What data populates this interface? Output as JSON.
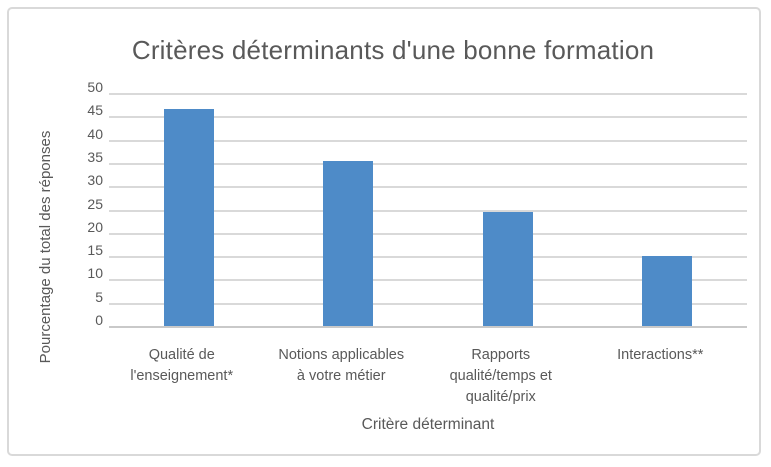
{
  "chart_data": {
    "type": "bar",
    "title": "Critères déterminants d'une bonne formation",
    "xlabel": "Critère déterminant",
    "ylabel": "Pourcentage du total des réponses",
    "categories": [
      "Qualité de l'enseignement*",
      "Notions applicables à votre métier",
      "Rapports qualité/temps et qualité/prix",
      "Interactions**"
    ],
    "values": [
      46.5,
      35.5,
      24.5,
      15
    ],
    "ylim": [
      0,
      50
    ],
    "yticks": [
      0,
      5,
      10,
      15,
      20,
      25,
      30,
      35,
      40,
      45,
      50
    ],
    "grid": "horizontal",
    "legend": "none",
    "bar_color": "#4E8BC8",
    "category_label_lines": [
      [
        "Qualité de",
        "l'enseignement*"
      ],
      [
        "Notions applicables",
        "à votre métier"
      ],
      [
        "Rapports",
        "qualité/temps et",
        "qualité/prix"
      ],
      [
        "Interactions**"
      ]
    ]
  },
  "colors": {
    "text": "#595959",
    "gridline": "#D9D9D9",
    "axis_line": "#C9C9C9",
    "frame_border": "#D9D9D9",
    "bar": "#4E8BC8"
  }
}
